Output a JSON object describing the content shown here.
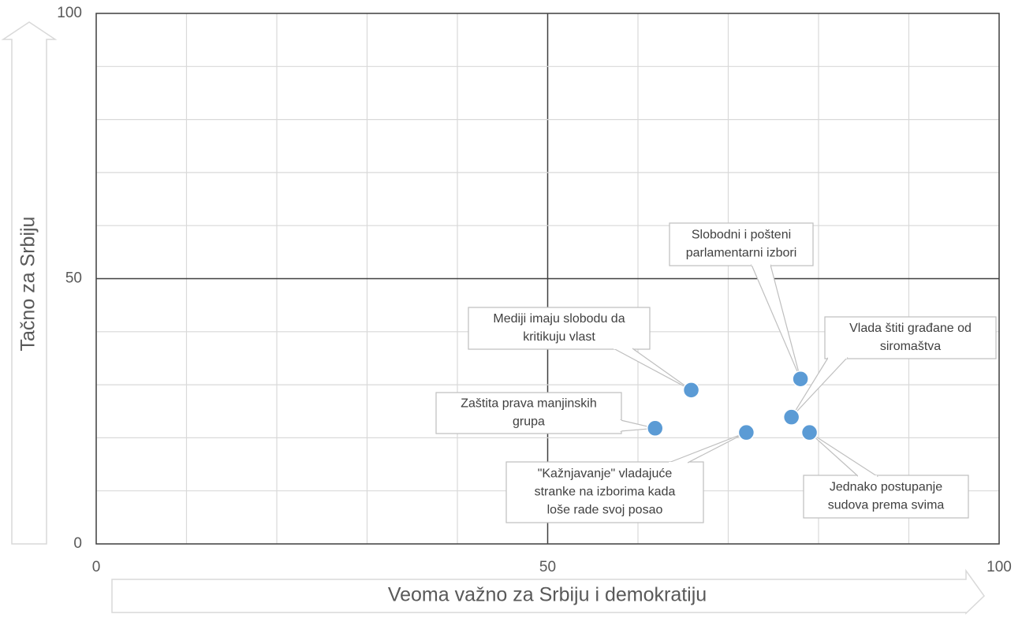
{
  "chart_data": {
    "type": "scatter",
    "xlabel": "Veoma važno za Srbiju i demokratiju",
    "ylabel": "Tačno za Srbiju",
    "xlim": [
      0,
      100
    ],
    "ylim": [
      0,
      100
    ],
    "xticks": [
      0,
      50,
      100
    ],
    "yticks": [
      0,
      50,
      100
    ],
    "xgrid": [
      0,
      10,
      20,
      30,
      40,
      50,
      60,
      70,
      80,
      90,
      100
    ],
    "ygrid": [
      0,
      10,
      20,
      30,
      40,
      50,
      60,
      70,
      80,
      90,
      100
    ],
    "major_grid": 50,
    "color": "#5b9bd5",
    "x": [
      65.9,
      61.9,
      72.0,
      78.0,
      77.0,
      79.0
    ],
    "values": [
      29.0,
      21.8,
      21.0,
      31.1,
      23.9,
      21.0
    ],
    "labels": [
      [
        "Mediji imaju slobodu da",
        "kritikuju vlast"
      ],
      [
        "Zaštita prava manjinskih",
        "grupa"
      ],
      [
        "\"Kažnjavanje\" vladajuće",
        "stranke na izborima kada",
        "loše rade svoj posao"
      ],
      [
        "Slobodni i pošteni",
        "parlamentarni izbori"
      ],
      [
        "Vlada štiti građane od",
        "siromaštva"
      ],
      [
        "Jednako postupanje",
        "sudova prema svima"
      ]
    ]
  }
}
